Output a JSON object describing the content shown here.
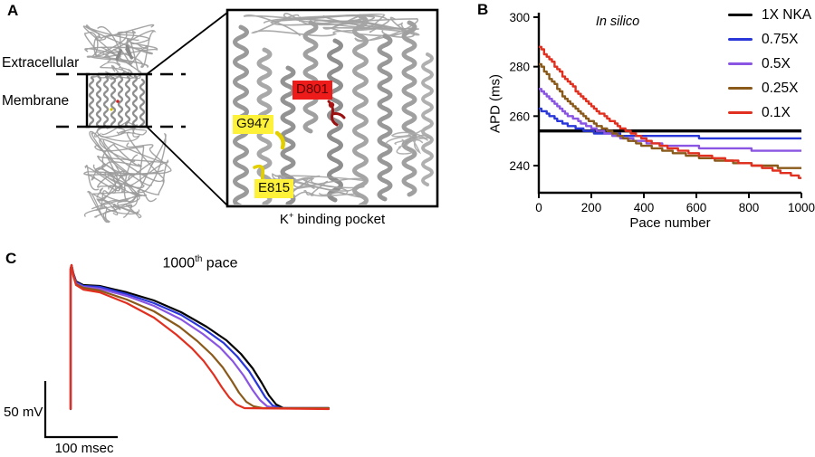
{
  "figure": {
    "panel_a": {
      "label": "A",
      "extracellular_label": "Extracellular",
      "membrane_label": "Membrane",
      "inset": {
        "residues": [
          {
            "text": "D801",
            "bg": "#ee1b1b",
            "color": "#5c0606"
          },
          {
            "text": "G947",
            "bg": "#fdf13a",
            "color": "#141400"
          },
          {
            "text": "E815",
            "bg": "#fdf13a",
            "color": "#141400"
          }
        ],
        "caption_base": "K",
        "caption_sup": "+",
        "caption_rest": " binding pocket"
      }
    },
    "panel_b": {
      "label": "B"
    },
    "panel_c": {
      "label": "C",
      "title_base": "1000",
      "title_sup": "th",
      "title_rest": " pace",
      "v_scalebar_label": "50 mV",
      "h_scalebar_label": "100 msec"
    }
  },
  "chart_data": [
    {
      "type": "line",
      "panel": "B",
      "annotation": "In silico",
      "xlabel": "Pace number",
      "ylabel": "APD (ms)",
      "xlim": [
        0,
        1000
      ],
      "ylim": [
        229,
        300
      ],
      "xticks": [
        0,
        200,
        400,
        600,
        800,
        1000
      ],
      "yticks": [
        240,
        260,
        280,
        300
      ],
      "grid": false,
      "legend_position": "outside-top-right",
      "x": [
        0,
        100,
        200,
        300,
        400,
        500,
        600,
        700,
        800,
        900,
        1000
      ],
      "series": [
        {
          "name": "1X NKA",
          "color": "#000000",
          "values": [
            254,
            254,
            254,
            254,
            254,
            254,
            254,
            254,
            254,
            254,
            254
          ]
        },
        {
          "name": "0.75X",
          "color": "#2b38d9",
          "values": [
            263,
            256.5,
            253.5,
            252.5,
            252,
            251.5,
            251.5,
            251,
            251,
            251,
            251
          ]
        },
        {
          "name": "0.5X",
          "color": "#8a55e2",
          "values": [
            271,
            261,
            255,
            251.5,
            249.5,
            248,
            247.5,
            247,
            246.5,
            246,
            246
          ]
        },
        {
          "name": "0.25X",
          "color": "#8a5a1b",
          "values": [
            281,
            267,
            257.5,
            252,
            248,
            245.5,
            243.5,
            242,
            240.5,
            239.5,
            239
          ]
        },
        {
          "name": "0.1X",
          "color": "#e1301f",
          "values": [
            288,
            275,
            263.5,
            256,
            250.5,
            247,
            244.5,
            242.5,
            240.5,
            238,
            235
          ]
        }
      ]
    },
    {
      "type": "line",
      "panel": "C",
      "title": "1000th pace",
      "y_scalebar": "50 mV",
      "x_scalebar": "100 msec",
      "series": [
        {
          "name": "1X NKA",
          "color": "#000000",
          "points": [
            [
              78,
              177
            ],
            [
              78,
              22
            ],
            [
              79,
              18
            ],
            [
              81,
              27
            ],
            [
              84,
              36
            ],
            [
              92,
              40
            ],
            [
              110,
              41
            ],
            [
              140,
              48
            ],
            [
              170,
              57
            ],
            [
              200,
              70
            ],
            [
              228,
              86
            ],
            [
              250,
              101
            ],
            [
              266,
              116
            ],
            [
              279,
              132
            ],
            [
              289,
              148
            ],
            [
              297,
              162
            ],
            [
              305,
              172
            ],
            [
              313,
              176
            ],
            [
              363,
              176
            ]
          ]
        },
        {
          "name": "0.75X",
          "color": "#2b38d9",
          "points": [
            [
              78,
              177
            ],
            [
              78,
              22
            ],
            [
              79,
              18
            ],
            [
              81,
              28
            ],
            [
              84,
              37
            ],
            [
              92,
              41
            ],
            [
              110,
              42
            ],
            [
              140,
              50
            ],
            [
              170,
              60
            ],
            [
              200,
              73
            ],
            [
              226,
              89
            ],
            [
              247,
              104
            ],
            [
              262,
              119
            ],
            [
              275,
              135
            ],
            [
              285,
              151
            ],
            [
              293,
              164
            ],
            [
              301,
              173
            ],
            [
              310,
              176
            ],
            [
              363,
              176
            ]
          ]
        },
        {
          "name": "0.5X",
          "color": "#8a55e2",
          "points": [
            [
              78,
              177
            ],
            [
              78,
              22
            ],
            [
              79,
              18
            ],
            [
              81,
              28
            ],
            [
              84,
              38
            ],
            [
              92,
              42
            ],
            [
              110,
              44
            ],
            [
              140,
              52
            ],
            [
              170,
              63
            ],
            [
              200,
              78
            ],
            [
              224,
              94
            ],
            [
              243,
              109
            ],
            [
              257,
              124
            ],
            [
              269,
              140
            ],
            [
              279,
              156
            ],
            [
              287,
              167
            ],
            [
              295,
              174
            ],
            [
              305,
              176
            ],
            [
              363,
              176
            ]
          ]
        },
        {
          "name": "0.25X",
          "color": "#8a5a1b",
          "points": [
            [
              78,
              177
            ],
            [
              78,
              22
            ],
            [
              79,
              18
            ],
            [
              81,
              29
            ],
            [
              84,
              39
            ],
            [
              92,
              43
            ],
            [
              110,
              46
            ],
            [
              140,
              56
            ],
            [
              170,
              69
            ],
            [
              198,
              86
            ],
            [
              218,
              102
            ],
            [
              234,
              117
            ],
            [
              246,
              131
            ],
            [
              256,
              146
            ],
            [
              264,
              159
            ],
            [
              272,
              169
            ],
            [
              280,
              174
            ],
            [
              290,
              176
            ],
            [
              363,
              176
            ]
          ]
        },
        {
          "name": "0.1X",
          "color": "#e1301f",
          "points": [
            [
              78,
              177
            ],
            [
              78,
              22
            ],
            [
              79,
              18
            ],
            [
              81,
              30
            ],
            [
              84,
              40
            ],
            [
              92,
              45
            ],
            [
              110,
              48
            ],
            [
              140,
              60
            ],
            [
              170,
              76
            ],
            [
              195,
              95
            ],
            [
              212,
              110
            ],
            [
              225,
              124
            ],
            [
              236,
              139
            ],
            [
              245,
              153
            ],
            [
              253,
              164
            ],
            [
              261,
              172
            ],
            [
              270,
              176
            ],
            [
              363,
              177
            ]
          ]
        }
      ]
    }
  ]
}
